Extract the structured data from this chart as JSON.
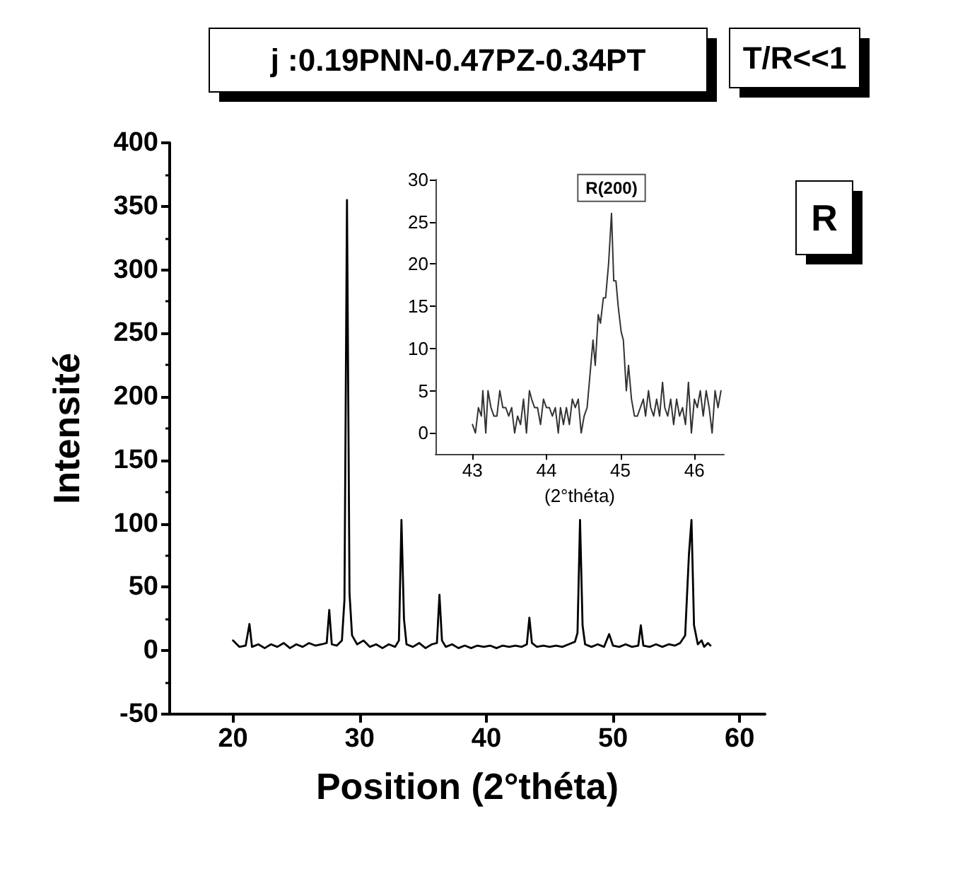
{
  "chart_data": [
    {
      "type": "line",
      "title": "j :0.19PNN-0.47PZ-0.34PT",
      "xlabel": "Position (2°théta)",
      "ylabel": "Intensité",
      "annotations": [
        "T/R<<1",
        "R"
      ],
      "xlim": [
        15,
        62
      ],
      "xticks": [
        20,
        30,
        40,
        50,
        60
      ],
      "ylim": [
        -50,
        400
      ],
      "yticks": [
        -50,
        0,
        50,
        100,
        150,
        200,
        250,
        300,
        350,
        400
      ],
      "grid": false,
      "marker": "none",
      "line_style": "solid",
      "series": [
        {
          "color": "#000000",
          "x": [
            20,
            20.5,
            21,
            21.3,
            21.5,
            22,
            22.5,
            23,
            23.5,
            24,
            24.5,
            25,
            25.5,
            26,
            26.5,
            27,
            27.4,
            27.6,
            27.8,
            28.2,
            28.6,
            28.8,
            29.0,
            29.2,
            29.4,
            29.8,
            30.3,
            30.8,
            31.3,
            31.8,
            32.3,
            32.8,
            33.1,
            33.3,
            33.5,
            33.7,
            34.2,
            34.7,
            35.2,
            35.7,
            36.1,
            36.3,
            36.5,
            36.8,
            37.3,
            37.8,
            38.3,
            38.8,
            39.3,
            39.8,
            40.3,
            40.8,
            41.3,
            41.8,
            42.3,
            42.8,
            43.2,
            43.4,
            43.6,
            44,
            44.5,
            45,
            45.5,
            46,
            46.5,
            47.0,
            47.2,
            47.4,
            47.6,
            47.8,
            48.3,
            48.8,
            49.3,
            49.7,
            50,
            50.5,
            51,
            51.5,
            52,
            52.2,
            52.4,
            52.9,
            53.4,
            53.9,
            54.4,
            54.9,
            55.3,
            55.7,
            56.0,
            56.2,
            56.4,
            56.7,
            57.0,
            57.2,
            57.5,
            57.7
          ],
          "values": [
            8,
            3,
            4,
            21,
            3,
            5,
            2,
            5,
            3,
            6,
            2,
            5,
            3,
            6,
            4,
            5,
            6,
            32,
            5,
            4,
            8,
            40,
            355,
            45,
            12,
            5,
            8,
            3,
            5,
            2,
            5,
            3,
            8,
            103,
            25,
            5,
            3,
            6,
            2,
            5,
            6,
            44,
            8,
            3,
            5,
            2,
            4,
            2,
            4,
            3,
            4,
            2,
            4,
            3,
            4,
            3,
            5,
            26,
            6,
            3,
            4,
            3,
            4,
            3,
            5,
            7,
            14,
            103,
            20,
            5,
            3,
            5,
            3,
            13,
            4,
            3,
            5,
            3,
            4,
            20,
            4,
            3,
            5,
            3,
            5,
            4,
            6,
            12,
            76,
            103,
            20,
            5,
            8,
            3,
            6,
            4
          ]
        }
      ]
    },
    {
      "type": "line",
      "xlabel": "(2°théta)",
      "annotations": [
        {
          "text": "R(200)",
          "x": 44.88,
          "y": 26
        }
      ],
      "xlim": [
        42.5,
        46.4
      ],
      "xticks": [
        43,
        44,
        45,
        46
      ],
      "ylim": [
        -2.5,
        30
      ],
      "yticks": [
        0,
        5,
        10,
        15,
        20,
        25,
        30
      ],
      "grid": false,
      "marker": "none",
      "line_style": "solid",
      "series": [
        {
          "color": "#333333",
          "x": [
            43.0,
            43.04,
            43.08,
            43.12,
            43.14,
            43.18,
            43.21,
            43.25,
            43.29,
            43.33,
            43.37,
            43.41,
            43.45,
            43.49,
            43.53,
            43.57,
            43.61,
            43.65,
            43.69,
            43.73,
            43.77,
            43.8,
            43.84,
            43.88,
            43.92,
            43.96,
            44.0,
            44.04,
            44.08,
            44.12,
            44.16,
            44.19,
            44.23,
            44.27,
            44.31,
            44.35,
            44.39,
            44.43,
            44.47,
            44.51,
            44.55,
            44.59,
            44.63,
            44.66,
            44.7,
            44.73,
            44.77,
            44.8,
            44.84,
            44.88,
            44.91,
            44.94,
            44.97,
            45.01,
            45.04,
            45.08,
            45.11,
            45.15,
            45.19,
            45.23,
            45.27,
            45.31,
            45.34,
            45.38,
            45.41,
            45.45,
            45.49,
            45.53,
            45.57,
            45.6,
            45.64,
            45.68,
            45.72,
            45.76,
            45.8,
            45.84,
            45.88,
            45.92,
            45.96,
            46.0,
            46.04,
            46.08,
            46.12,
            46.16,
            46.2,
            46.24,
            46.28,
            46.32,
            46.36
          ],
          "values": [
            1,
            0,
            3,
            2,
            5,
            0,
            5,
            3,
            2,
            2,
            5,
            3,
            3,
            2,
            3,
            0,
            2,
            1,
            4,
            0,
            5,
            4,
            3,
            3,
            1,
            4,
            3,
            3,
            2,
            3,
            0,
            3,
            1,
            3,
            1,
            4,
            3,
            4,
            0,
            2,
            3,
            7,
            11,
            8,
            14,
            13,
            16,
            16,
            20,
            26,
            18,
            18,
            15,
            12,
            11,
            5,
            8,
            4,
            2,
            2,
            3,
            4,
            2,
            5,
            3,
            2,
            4,
            2,
            6,
            3,
            2,
            4,
            1,
            4,
            2,
            3,
            1,
            6,
            0,
            4,
            3,
            5,
            2,
            5,
            3,
            0,
            5,
            3,
            5
          ]
        }
      ]
    }
  ]
}
